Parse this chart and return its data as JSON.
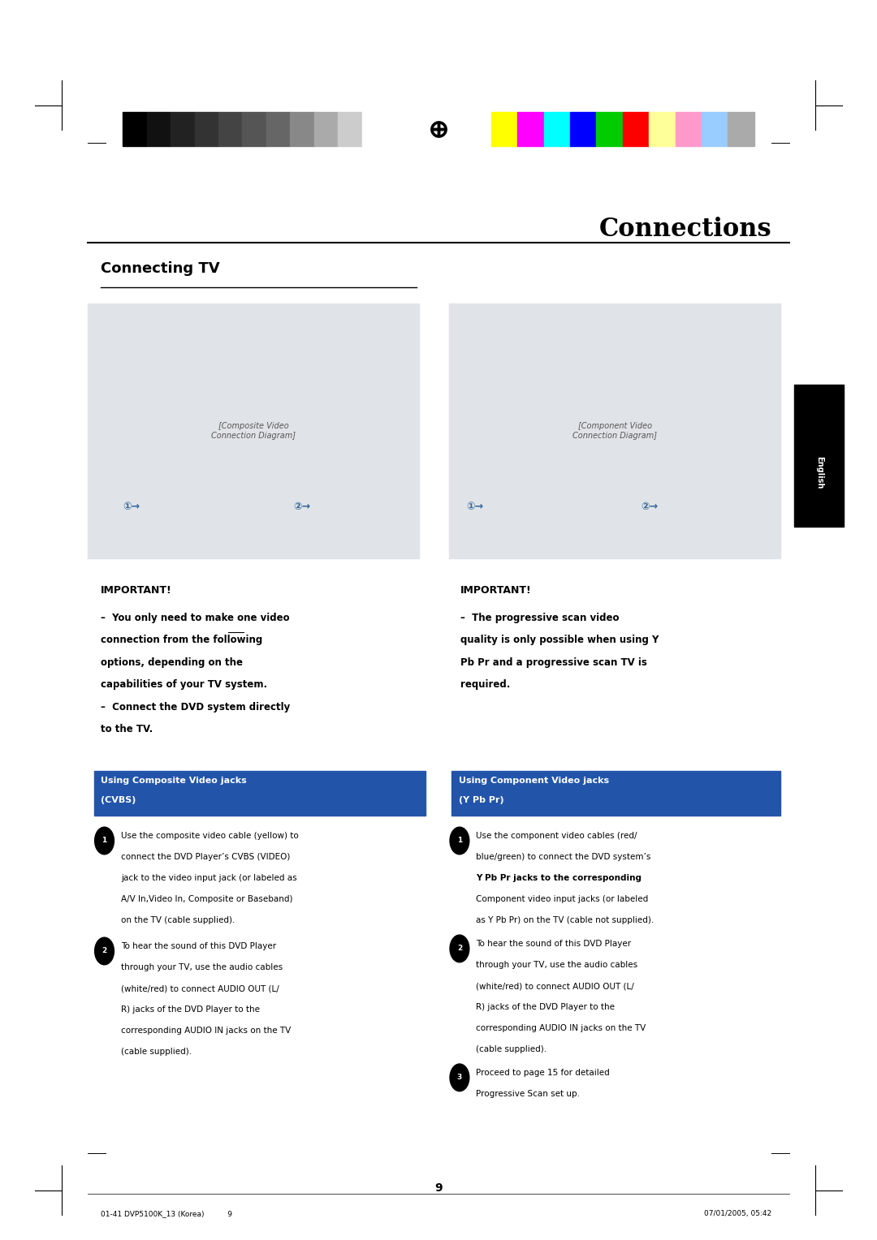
{
  "page_bg": "#ffffff",
  "page_width": 10.8,
  "page_height": 15.28,
  "header_bar_colors_left": [
    "#000000",
    "#111111",
    "#222222",
    "#333333",
    "#444444",
    "#555555",
    "#666666",
    "#888888",
    "#aaaaaa",
    "#cccccc",
    "#ffffff"
  ],
  "header_bar_colors_right": [
    "#ffff00",
    "#ff00ff",
    "#00ffff",
    "#0000ff",
    "#00cc00",
    "#ff0000",
    "#ffff99",
    "#ff99cc",
    "#99ccff",
    "#aaaaaa"
  ],
  "title": "Connections",
  "section_title": "Connecting TV",
  "important_left_title": "IMPORTANT!",
  "important_left_line1": "–  You only need to make one video",
  "important_left_line1_plain": "–  You only need to make ",
  "important_left_line1_underline": "one",
  "important_left_line1_after": " video",
  "important_left_rest": [
    "connection from the following",
    "options, depending on the",
    "capabilities of your TV system.",
    "–  Connect the DVD system directly",
    "to the TV."
  ],
  "cvbs_header_bg": "#2255aa",
  "cvbs_header_line1": "Using Composite Video jacks",
  "cvbs_header_line2": "(CVBS)",
  "cvbs_1_lines": [
    "Use the composite video cable (yellow) to",
    "connect the DVD Player’s CVBS (VIDEO)",
    "jack to the video input jack (or labeled as",
    "A/V In,Video In, Composite or Baseband)",
    "on the TV (cable supplied)."
  ],
  "cvbs_2_lines": [
    "To hear the sound of this DVD Player",
    "through your TV, use the audio cables",
    "(white/red) to connect AUDIO OUT (L/",
    "R) jacks of the DVD Player to the",
    "corresponding AUDIO IN jacks on the TV",
    "(cable supplied)."
  ],
  "important_right_title": "IMPORTANT!",
  "important_right_lines": [
    "–  The progressive scan video",
    "quality is only possible when using Y",
    "Pb Pr and a progressive scan TV is",
    "required."
  ],
  "component_header_bg": "#2255aa",
  "component_header_line1": "Using Component Video jacks",
  "component_header_line2": "(Y Pb Pr)",
  "comp_1_lines": [
    "Use the component video cables (red/",
    "blue/green) to connect the DVD system’s",
    "Y Pb Pr jacks to the corresponding",
    "Component video input jacks (or labeled",
    "as Y Pb Pr) on the TV (cable not supplied)."
  ],
  "comp_1_bold_prefix": "Y Pb Pr",
  "comp_2_lines": [
    "To hear the sound of this DVD Player",
    "through your TV, use the audio cables",
    "(white/red) to connect AUDIO OUT (L/",
    "R) jacks of the DVD Player to the",
    "corresponding AUDIO IN jacks on the TV",
    "(cable supplied)."
  ],
  "comp_3_lines": [
    "Proceed to page 15 for detailed",
    "Progressive Scan set up."
  ],
  "page_number": "9",
  "footer_left": "01-41 DVP5100K_13 (Korea)          9",
  "footer_right": "07/01/2005, 05:42"
}
